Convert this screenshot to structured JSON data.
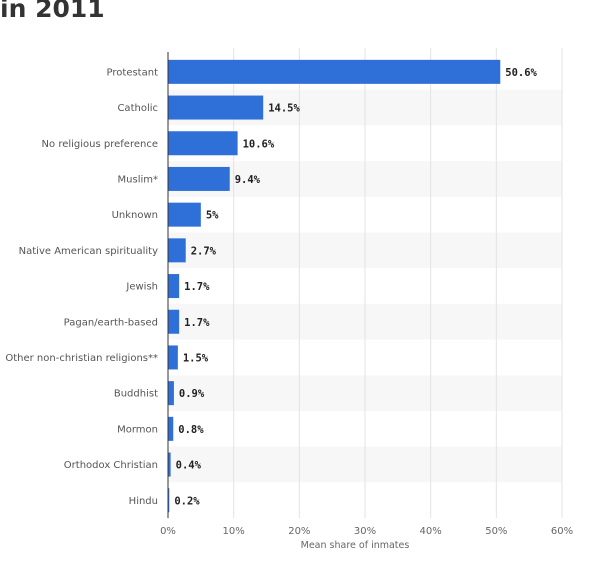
{
  "heading": "in 2011",
  "chart_data": {
    "type": "bar",
    "orientation": "horizontal",
    "categories": [
      "Protestant",
      "Catholic",
      "No religious preference",
      "Muslim*",
      "Unknown",
      "Native American spirituality",
      "Jewish",
      "Pagan/earth-based",
      "Other non-christian religions**",
      "Buddhist",
      "Mormon",
      "Orthodox Christian",
      "Hindu"
    ],
    "values": [
      50.6,
      14.5,
      10.6,
      9.4,
      5,
      2.7,
      1.7,
      1.7,
      1.5,
      0.9,
      0.8,
      0.4,
      0.2
    ],
    "value_labels": [
      "50.6%",
      "14.5%",
      "10.6%",
      "9.4%",
      "5%",
      "2.7%",
      "1.7%",
      "1.7%",
      "1.5%",
      "0.9%",
      "0.8%",
      "0.4%",
      "0.2%"
    ],
    "xlabel": "Mean share of inmates",
    "xlim": [
      0,
      60
    ],
    "xticks": [
      "0%",
      "10%",
      "20%",
      "30%",
      "40%",
      "50%",
      "60%"
    ],
    "bar_color": "#2f6fd8",
    "grid": true
  }
}
